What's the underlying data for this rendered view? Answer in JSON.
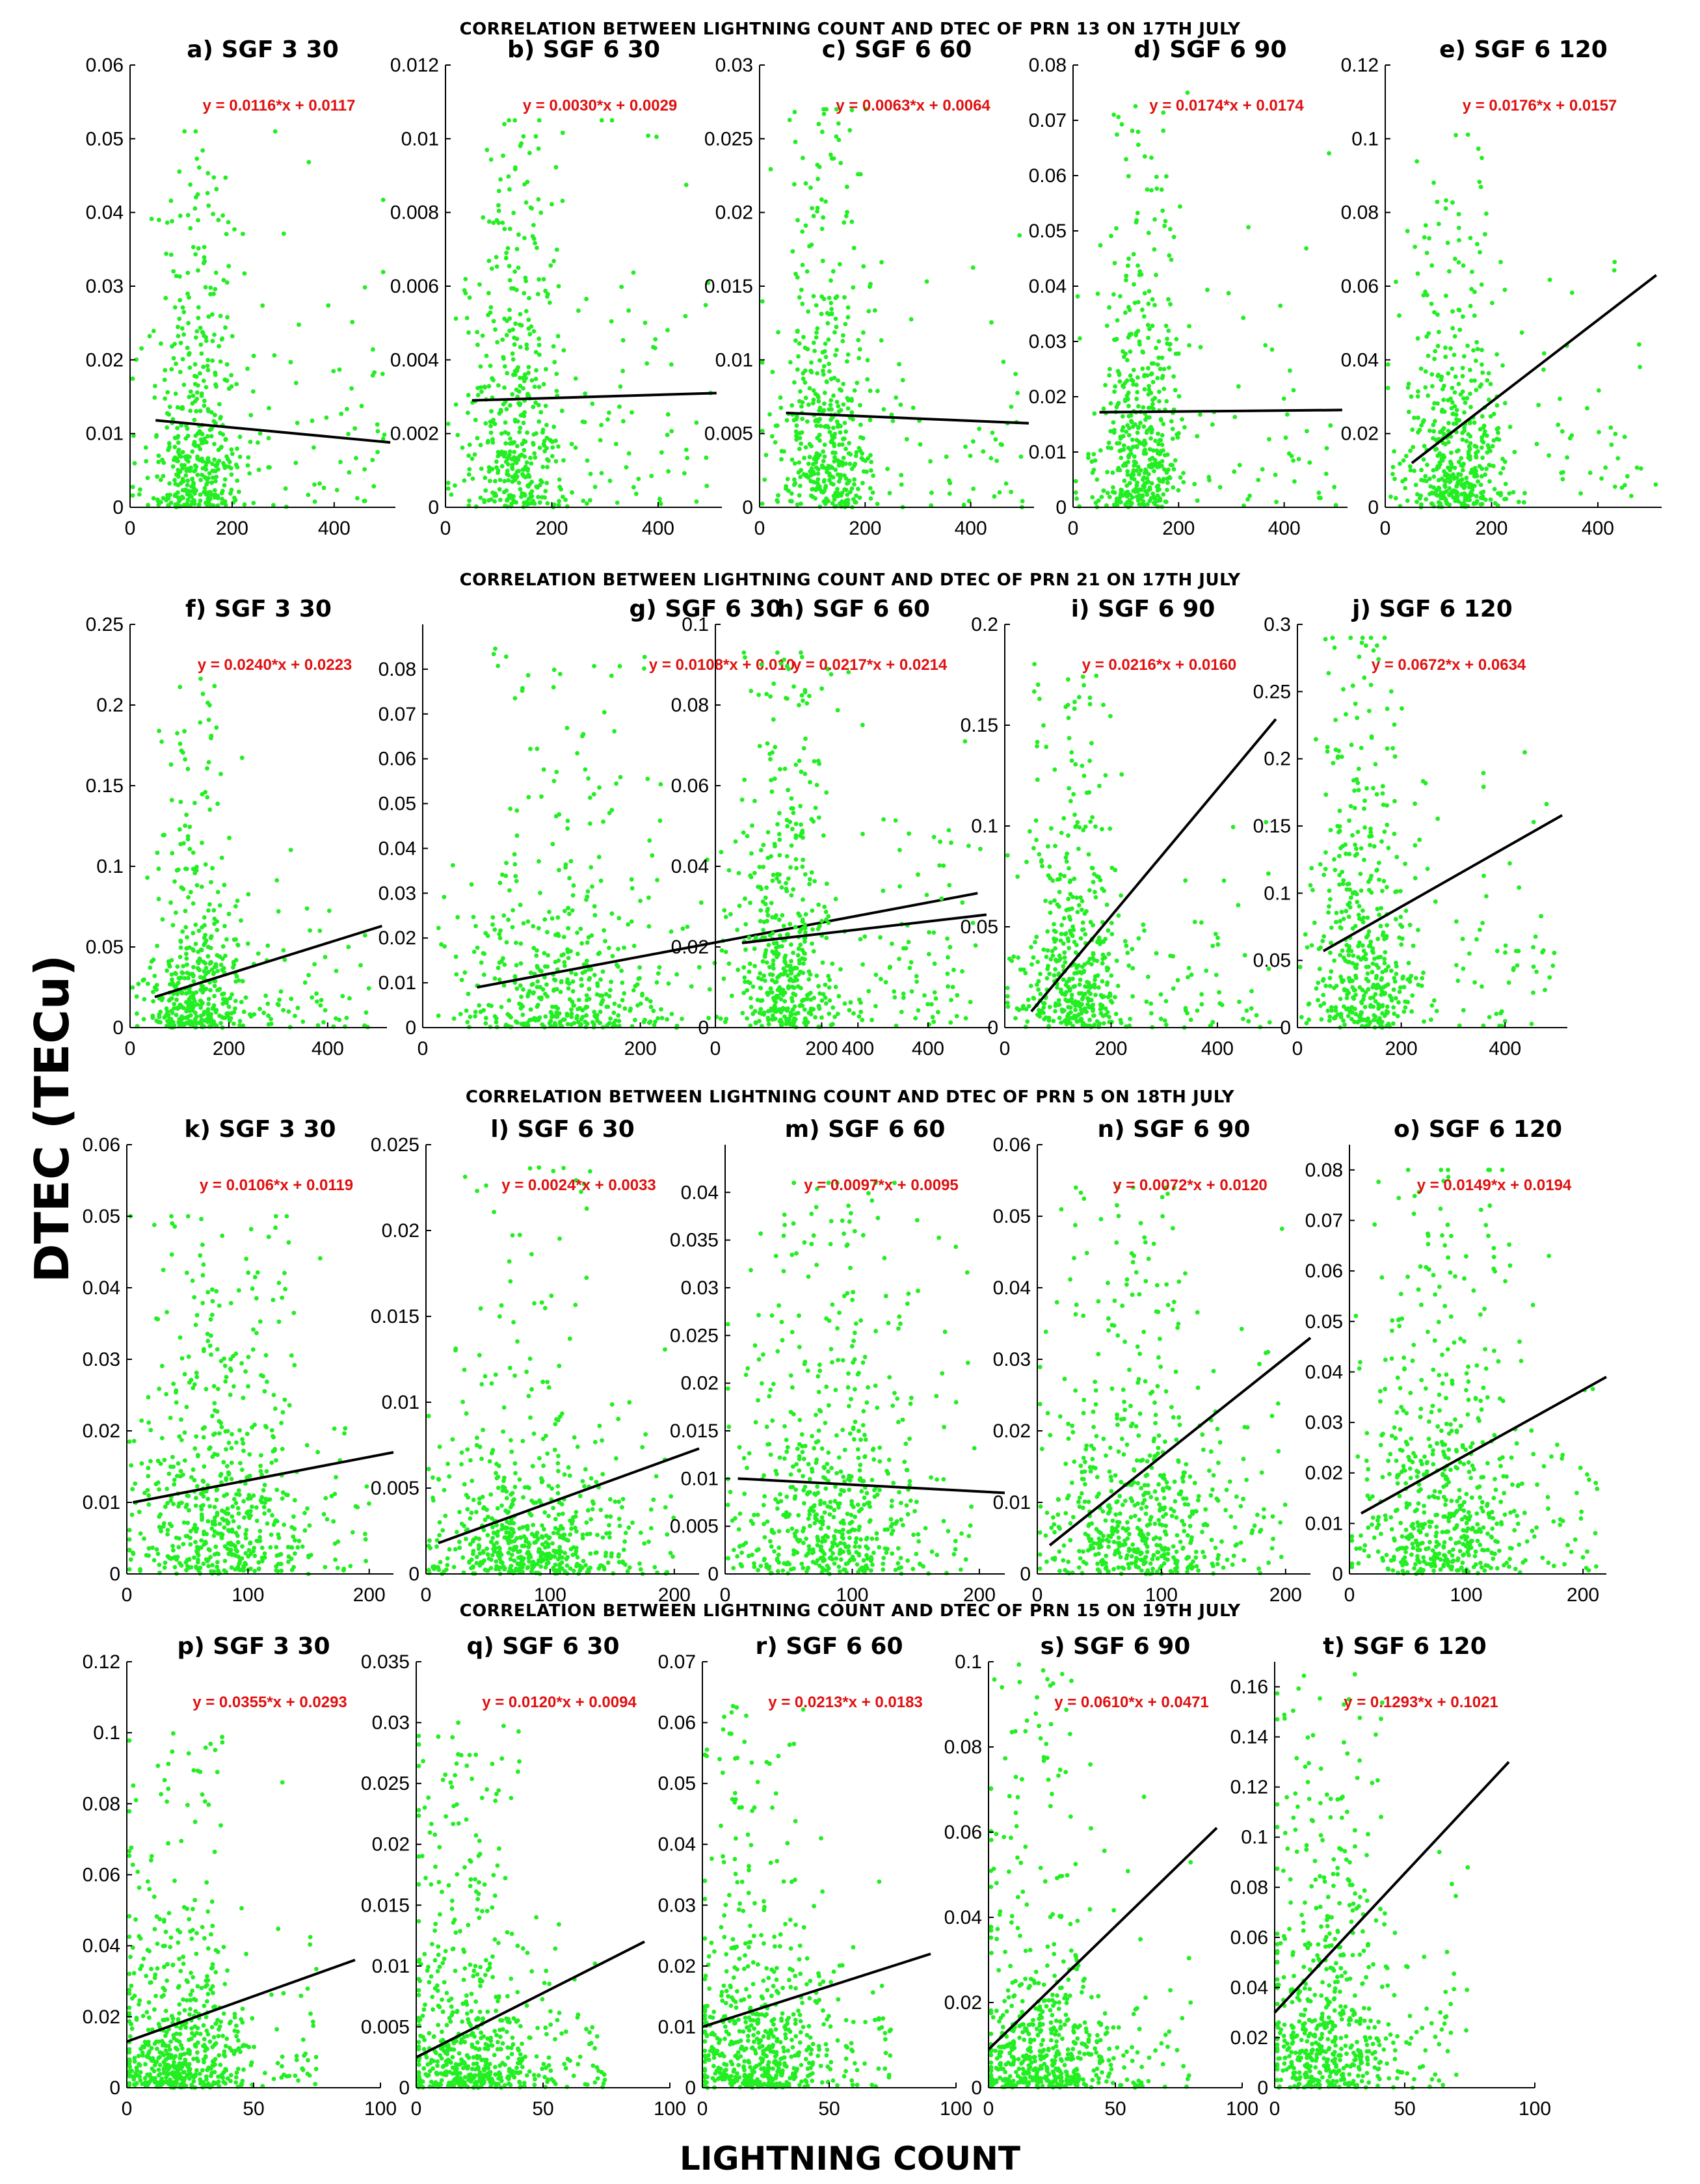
{
  "figure": {
    "ylabel": "DTEC (TECu)",
    "xlabel": "LIGHTNING COUNT",
    "row_titles": [
      "CORRELATION BETWEEN LIGHTNING COUNT AND DTEC OF PRN 13 ON 17TH JULY",
      "CORRELATION BETWEEN LIGHTNING COUNT AND DTEC OF PRN 21 ON 17TH JULY",
      "CORRELATION BETWEEN LIGHTNING COUNT AND DTEC OF PRN 5 ON 18TH JULY",
      "CORRELATION BETWEEN LIGHTNING COUNT AND DTEC OF PRN 15 ON 19TH JULY"
    ],
    "colors": {
      "points": "#22ee22",
      "fit_line": "#000000",
      "equation": "#e01010",
      "axis": "#000000"
    }
  },
  "chart_data": [
    {
      "type": "scatter",
      "title": "a) SGF 3 30",
      "equation": "y = 0.0116*x + 0.0117",
      "xlim": [
        0,
        520
      ],
      "ylim": [
        0,
        0.06
      ],
      "xticks": [
        0,
        200,
        400
      ],
      "yticks": [
        0,
        0.01,
        0.02,
        0.03,
        0.04,
        0.05,
        0.06
      ],
      "ytick_labels": [
        "0",
        "0.01",
        "0.02",
        "0.03",
        "0.04",
        "0.05",
        "0.06"
      ],
      "fit": {
        "x0": 50,
        "y0": 0.0118,
        "x1": 510,
        "y1": 0.0088
      },
      "cloud": {
        "n": 520,
        "xpeak": 130,
        "xspread": 70,
        "xmax": 500,
        "ymax": 0.051,
        "ybase": 0.012
      }
    },
    {
      "type": "scatter",
      "title": "b) SGF 6 30",
      "equation": "y = 0.0030*x + 0.0029",
      "xlim": [
        0,
        520
      ],
      "ylim": [
        0,
        0.012
      ],
      "xticks": [
        0,
        200,
        400
      ],
      "yticks": [
        0,
        0.002,
        0.004,
        0.006,
        0.008,
        0.01,
        0.012
      ],
      "ytick_labels": [
        "0",
        "0.002",
        "0.004",
        "0.006",
        "0.008",
        "0.01",
        "0.012"
      ],
      "fit": {
        "x0": 50,
        "y0": 0.0029,
        "x1": 510,
        "y1": 0.0031
      },
      "cloud": {
        "n": 520,
        "xpeak": 130,
        "xspread": 70,
        "xmax": 500,
        "ymax": 0.0105,
        "ybase": 0.003
      }
    },
    {
      "type": "scatter",
      "title": "c) SGF 6 60",
      "equation": "y = 0.0063*x + 0.0064",
      "xlim": [
        0,
        520
      ],
      "ylim": [
        0,
        0.03
      ],
      "xticks": [
        0,
        200,
        400
      ],
      "yticks": [
        0,
        0.005,
        0.01,
        0.015,
        0.02,
        0.025,
        0.03
      ],
      "ytick_labels": [
        "0",
        "0.005",
        "0.01",
        "0.015",
        "0.02",
        "0.025",
        "0.03"
      ],
      "fit": {
        "x0": 50,
        "y0": 0.0064,
        "x1": 510,
        "y1": 0.0057
      },
      "cloud": {
        "n": 520,
        "xpeak": 130,
        "xspread": 70,
        "xmax": 500,
        "ymax": 0.027,
        "ybase": 0.0065
      }
    },
    {
      "type": "scatter",
      "title": "d) SGF 6 90",
      "equation": "y = 0.0174*x + 0.0174",
      "xlim": [
        0,
        520
      ],
      "ylim": [
        0,
        0.08
      ],
      "xticks": [
        0,
        200,
        400
      ],
      "yticks": [
        0,
        0.01,
        0.02,
        0.03,
        0.04,
        0.05,
        0.06,
        0.07,
        0.08
      ],
      "ytick_labels": [
        "0",
        "0.01",
        "0.02",
        "0.03",
        "0.04",
        "0.05",
        "0.06",
        "0.07",
        "0.08"
      ],
      "fit": {
        "x0": 50,
        "y0": 0.0172,
        "x1": 510,
        "y1": 0.0176
      },
      "cloud": {
        "n": 520,
        "xpeak": 130,
        "xspread": 60,
        "xmax": 500,
        "ymax": 0.075,
        "ybase": 0.017
      }
    },
    {
      "type": "scatter",
      "title": "e) SGF 6 120",
      "equation": "y = 0.0176*x + 0.0157",
      "xlim": [
        0,
        520
      ],
      "ylim": [
        0,
        0.12
      ],
      "xticks": [
        0,
        200,
        400
      ],
      "yticks": [
        0,
        0.02,
        0.04,
        0.06,
        0.08,
        0.1,
        0.12
      ],
      "ytick_labels": [
        "0",
        "0.02",
        "0.04",
        "0.06",
        "0.08",
        "0.1",
        "0.12"
      ],
      "fit": {
        "x0": 50,
        "y0": 0.012,
        "x1": 510,
        "y1": 0.063
      },
      "cloud": {
        "n": 520,
        "xpeak": 130,
        "xspread": 70,
        "xmax": 510,
        "ymax": 0.104,
        "ybase": 0.02
      }
    },
    {
      "type": "scatter",
      "title": "f) SGF 3 30",
      "equation": "y = 0.0240*x + 0.0223",
      "xlim": [
        0,
        520
      ],
      "ylim": [
        0,
        0.25
      ],
      "xticks": [
        0,
        200,
        400
      ],
      "yticks": [
        0,
        0.05,
        0.1,
        0.15,
        0.2,
        0.25
      ],
      "ytick_labels": [
        "0",
        "0.05",
        "0.1",
        "0.15",
        "0.2",
        "0.25"
      ],
      "fit": {
        "x0": 50,
        "y0": 0.019,
        "x1": 510,
        "y1": 0.063
      },
      "cloud": {
        "n": 520,
        "xpeak": 130,
        "xspread": 70,
        "xmax": 500,
        "ymax": 0.22,
        "ybase": 0.03
      }
    },
    {
      "type": "scatter",
      "title": "g) SGF 6 30",
      "equation": "y = 0.0108*x + 0.010",
      "xlim": [
        0,
        520
      ],
      "ylim": [
        0,
        0.09
      ],
      "xticks": [
        0,
        200,
        400
      ],
      "yticks": [
        0,
        0.01,
        0.02,
        0.03,
        0.04,
        0.05,
        0.06,
        0.07,
        0.08
      ],
      "ytick_labels": [
        "0",
        "0.01",
        "0.02",
        "0.03",
        "0.04",
        "0.05",
        "0.06",
        "0.07",
        "0.08"
      ],
      "fit": {
        "x0": 50,
        "y0": 0.009,
        "x1": 510,
        "y1": 0.03
      },
      "cloud": {
        "n": 520,
        "xpeak": 130,
        "xspread": 70,
        "xmax": 500,
        "ymax": 0.085,
        "ybase": 0.012
      }
    },
    {
      "type": "scatter",
      "title": "h) SGF 6 60",
      "equation": "y = 0.0217*x + 0.0214",
      "xlim": [
        0,
        520
      ],
      "ylim": [
        0,
        0.1
      ],
      "xticks": [
        0,
        200,
        400
      ],
      "yticks": [
        0,
        0.02,
        0.04,
        0.06,
        0.08,
        0.1
      ],
      "ytick_labels": [
        "0",
        "0.02",
        "0.04",
        "0.06",
        "0.08",
        "0.1"
      ],
      "fit": {
        "x0": 50,
        "y0": 0.021,
        "x1": 510,
        "y1": 0.028
      },
      "cloud": {
        "n": 520,
        "xpeak": 130,
        "xspread": 70,
        "xmax": 500,
        "ymax": 0.093,
        "ybase": 0.025
      }
    },
    {
      "type": "scatter",
      "title": "i) SGF 6 90",
      "equation": "y = 0.0216*x + 0.0160",
      "xlim": [
        0,
        520
      ],
      "ylim": [
        0,
        0.2
      ],
      "xticks": [
        0,
        200,
        400
      ],
      "yticks": [
        0,
        0.05,
        0.1,
        0.15,
        0.2
      ],
      "ytick_labels": [
        "0",
        "0.05",
        "0.1",
        "0.15",
        "0.2"
      ],
      "fit": {
        "x0": 50,
        "y0": 0.008,
        "x1": 510,
        "y1": 0.153
      },
      "cloud": {
        "n": 520,
        "xpeak": 130,
        "xspread": 70,
        "xmax": 500,
        "ymax": 0.185,
        "ybase": 0.035
      }
    },
    {
      "type": "scatter",
      "title": "j) SGF 6 120",
      "equation": "y = 0.0672*x + 0.0634",
      "xlim": [
        0,
        520
      ],
      "ylim": [
        0,
        0.3
      ],
      "xticks": [
        0,
        200,
        400
      ],
      "yticks": [
        0,
        0.05,
        0.1,
        0.15,
        0.2,
        0.25,
        0.3
      ],
      "ytick_labels": [
        "0",
        "0.05",
        "0.1",
        "0.15",
        "0.2",
        "0.25",
        "0.3"
      ],
      "fit": {
        "x0": 50,
        "y0": 0.057,
        "x1": 510,
        "y1": 0.158
      },
      "cloud": {
        "n": 520,
        "xpeak": 130,
        "xspread": 70,
        "xmax": 500,
        "ymax": 0.29,
        "ybase": 0.07
      }
    },
    {
      "type": "scatter",
      "title": "k) SGF 3 30",
      "equation": "y = 0.0106*x + 0.0119",
      "xlim": [
        0,
        220
      ],
      "ylim": [
        0,
        0.06
      ],
      "xticks": [
        0,
        100,
        200
      ],
      "yticks": [
        0,
        0.01,
        0.02,
        0.03,
        0.04,
        0.05,
        0.06
      ],
      "ytick_labels": [
        "0",
        "0.01",
        "0.02",
        "0.03",
        "0.04",
        "0.05",
        "0.06"
      ],
      "fit": {
        "x0": 5,
        "y0": 0.01,
        "x1": 220,
        "y1": 0.017
      },
      "cloud": {
        "n": 620,
        "xpeak": 80,
        "xspread": 55,
        "xmax": 200,
        "ymax": 0.05,
        "ybase": 0.012
      }
    },
    {
      "type": "scatter",
      "title": "l) SGF 6 30",
      "equation": "y = 0.0024*x + 0.0033",
      "xlim": [
        0,
        220
      ],
      "ylim": [
        0,
        0.025
      ],
      "xticks": [
        0,
        100,
        200
      ],
      "yticks": [
        0,
        0.005,
        0.01,
        0.015,
        0.02,
        0.025
      ],
      "ytick_labels": [
        "0",
        "0.005",
        "0.01",
        "0.015",
        "0.02",
        "0.025"
      ],
      "fit": {
        "x0": 10,
        "y0": 0.0018,
        "x1": 220,
        "y1": 0.0073
      },
      "cloud": {
        "n": 620,
        "xpeak": 80,
        "xspread": 55,
        "xmax": 200,
        "ymax": 0.024,
        "ybase": 0.003
      }
    },
    {
      "type": "scatter",
      "title": "m) SGF 6 60",
      "equation": "y = 0.0097*x + 0.0095",
      "xlim": [
        0,
        220
      ],
      "ylim": [
        0,
        0.045
      ],
      "xticks": [
        0,
        100,
        200
      ],
      "yticks": [
        0,
        0.005,
        0.01,
        0.015,
        0.02,
        0.025,
        0.03,
        0.035,
        0.04
      ],
      "ytick_labels": [
        "0",
        "0.005",
        "0.01",
        "0.015",
        "0.02",
        "0.025",
        "0.03",
        "0.035",
        "0.04"
      ],
      "fit": {
        "x0": 10,
        "y0": 0.01,
        "x1": 220,
        "y1": 0.0085
      },
      "cloud": {
        "n": 620,
        "xpeak": 80,
        "xspread": 55,
        "xmax": 200,
        "ymax": 0.041,
        "ybase": 0.01
      }
    },
    {
      "type": "scatter",
      "title": "n) SGF 6 90",
      "equation": "y = 0.0072*x + 0.0120",
      "xlim": [
        0,
        220
      ],
      "ylim": [
        0,
        0.06
      ],
      "xticks": [
        0,
        100,
        200
      ],
      "yticks": [
        0,
        0.01,
        0.02,
        0.03,
        0.04,
        0.05,
        0.06
      ],
      "ytick_labels": [
        "0",
        "0.01",
        "0.02",
        "0.03",
        "0.04",
        "0.05",
        "0.06"
      ],
      "fit": {
        "x0": 10,
        "y0": 0.004,
        "x1": 220,
        "y1": 0.033
      },
      "cloud": {
        "n": 620,
        "xpeak": 80,
        "xspread": 55,
        "xmax": 200,
        "ymax": 0.054,
        "ybase": 0.012
      }
    },
    {
      "type": "scatter",
      "title": "o) SGF 6 120",
      "equation": "y = 0.0149*x + 0.0194",
      "xlim": [
        0,
        220
      ],
      "ylim": [
        0,
        0.085
      ],
      "xticks": [
        0,
        100,
        200
      ],
      "yticks": [
        0,
        0.01,
        0.02,
        0.03,
        0.04,
        0.05,
        0.06,
        0.07,
        0.08
      ],
      "ytick_labels": [
        "0",
        "0.01",
        "0.02",
        "0.03",
        "0.04",
        "0.05",
        "0.06",
        "0.07",
        "0.08"
      ],
      "fit": {
        "x0": 10,
        "y0": 0.012,
        "x1": 220,
        "y1": 0.039
      },
      "cloud": {
        "n": 620,
        "xpeak": 80,
        "xspread": 55,
        "xmax": 215,
        "ymax": 0.08,
        "ybase": 0.018
      }
    },
    {
      "type": "scatter",
      "title": "p) SGF 3 30",
      "equation": "y = 0.0355*x + 0.0293",
      "xlim": [
        0,
        100
      ],
      "ylim": [
        0,
        0.12
      ],
      "xticks": [
        0,
        50,
        100
      ],
      "yticks": [
        0,
        0.02,
        0.04,
        0.06,
        0.08,
        0.1,
        0.12
      ],
      "ytick_labels": [
        "0",
        "0.02",
        "0.04",
        "0.06",
        "0.08",
        "0.1",
        "0.12"
      ],
      "fit": {
        "x0": 0,
        "y0": 0.013,
        "x1": 90,
        "y1": 0.036
      },
      "cloud": {
        "n": 620,
        "xpeak": 20,
        "xspread": 20,
        "xmax": 75,
        "ymax": 0.1,
        "ybase": 0.015
      }
    },
    {
      "type": "scatter",
      "title": "q) SGF 6 30",
      "equation": "y = 0.0120*x + 0.0094",
      "xlim": [
        0,
        100
      ],
      "ylim": [
        0,
        0.035
      ],
      "xticks": [
        0,
        50,
        100
      ],
      "yticks": [
        0,
        0.005,
        0.01,
        0.015,
        0.02,
        0.025,
        0.03,
        0.035
      ],
      "ytick_labels": [
        "0",
        "0.005",
        "0.01",
        "0.015",
        "0.02",
        "0.025",
        "0.03",
        "0.035"
      ],
      "fit": {
        "x0": 0,
        "y0": 0.0025,
        "x1": 90,
        "y1": 0.012
      },
      "cloud": {
        "n": 620,
        "xpeak": 20,
        "xspread": 20,
        "xmax": 75,
        "ymax": 0.03,
        "ybase": 0.004
      }
    },
    {
      "type": "scatter",
      "title": "r) SGF 6 60",
      "equation": "y = 0.0213*x + 0.0183",
      "xlim": [
        0,
        100
      ],
      "ylim": [
        0,
        0.07
      ],
      "xticks": [
        0,
        50,
        100
      ],
      "yticks": [
        0,
        0.01,
        0.02,
        0.03,
        0.04,
        0.05,
        0.06,
        0.07
      ],
      "ytick_labels": [
        "0",
        "0.01",
        "0.02",
        "0.03",
        "0.04",
        "0.05",
        "0.06",
        "0.07"
      ],
      "fit": {
        "x0": 0,
        "y0": 0.01,
        "x1": 90,
        "y1": 0.022
      },
      "cloud": {
        "n": 620,
        "xpeak": 20,
        "xspread": 20,
        "xmax": 75,
        "ymax": 0.065,
        "ybase": 0.01
      }
    },
    {
      "type": "scatter",
      "title": "s) SGF 6 90",
      "equation": "y = 0.0610*x + 0.0471",
      "xlim": [
        0,
        100
      ],
      "ylim": [
        0,
        0.1
      ],
      "xticks": [
        0,
        50,
        100
      ],
      "yticks": [
        0,
        0.02,
        0.04,
        0.06,
        0.08,
        0.1
      ],
      "ytick_labels": [
        "0",
        "0.02",
        "0.04",
        "0.06",
        "0.08",
        "0.1"
      ],
      "fit": {
        "x0": 0,
        "y0": 0.009,
        "x1": 90,
        "y1": 0.061
      },
      "cloud": {
        "n": 620,
        "xpeak": 20,
        "xspread": 20,
        "xmax": 80,
        "ymax": 0.1,
        "ybase": 0.012
      }
    },
    {
      "type": "scatter",
      "title": "t) SGF 6 120",
      "equation": "y = 0.1293*x + 0.1021",
      "xlim": [
        0,
        100
      ],
      "ylim": [
        0,
        0.17
      ],
      "xticks": [
        0,
        50,
        100
      ],
      "yticks": [
        0,
        0.02,
        0.04,
        0.06,
        0.08,
        0.1,
        0.12,
        0.14,
        0.16
      ],
      "ytick_labels": [
        "0",
        "0.02",
        "0.04",
        "0.06",
        "0.08",
        "0.1",
        "0.12",
        "0.14",
        "0.16"
      ],
      "fit": {
        "x0": 0,
        "y0": 0.03,
        "x1": 90,
        "y1": 0.13
      },
      "cloud": {
        "n": 620,
        "xpeak": 20,
        "xspread": 20,
        "xmax": 75,
        "ymax": 0.165,
        "ybase": 0.03
      }
    }
  ]
}
